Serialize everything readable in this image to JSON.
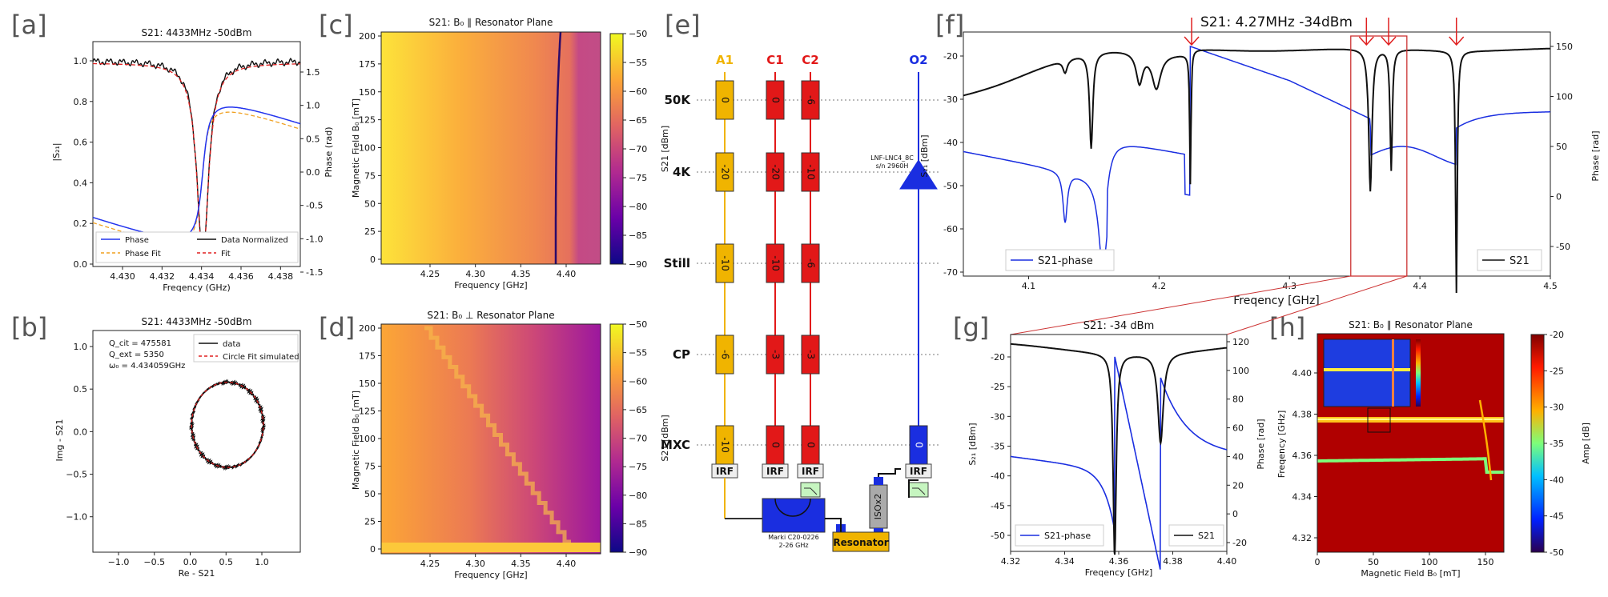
{
  "panel_labels": [
    "[a]",
    "[b]",
    "[c]",
    "[d]",
    "[e]",
    "[f]",
    "[g]",
    "[h]"
  ],
  "a": {
    "title": "S21: 4433MHz -50dBm",
    "xlabel": "Freqency (GHz)",
    "ylabel": "|S₂₁|",
    "y2label": "Phase (rad)",
    "xticks": [
      "4.430",
      "4.432",
      "4.434",
      "4.436",
      "4.438"
    ],
    "yticks": [
      "0.0",
      "0.2",
      "0.4",
      "0.6",
      "0.8",
      "1.0"
    ],
    "y2ticks": [
      "1.5",
      "1.0",
      "0.5",
      "0.0",
      "-0.5",
      "-1.0",
      "-1.5"
    ],
    "legend": [
      "Phase",
      "Data Normalized",
      "Phase Fit",
      "Fit"
    ]
  },
  "b": {
    "title": "S21: 4433MHz -50dBm",
    "xlabel": "Re - S21",
    "ylabel": "Img - S21",
    "xticks": [
      "−1.0",
      "−0.5",
      "0.0",
      "0.5",
      "1.0"
    ],
    "yticks": [
      "1.0",
      "0.5",
      "0.0",
      "−0.5",
      "−1.0"
    ],
    "params": [
      "Q_cit = 475581",
      "Q_ext = 5350",
      "ω₀ = 4.434059GHz"
    ],
    "legend": [
      "data",
      "Circle Fit simulated"
    ]
  },
  "c": {
    "title": "S21: B₀ ∥ Resonator Plane",
    "xlabel": "Frequency [GHz]",
    "ylabel": "Magnetic Field B₀ [mT]",
    "xticks": [
      "4.25",
      "4.30",
      "4.35",
      "4.40"
    ],
    "yticks": [
      "200",
      "175",
      "150",
      "125",
      "100",
      "75",
      "50",
      "25",
      "0"
    ],
    "cbar_label": "S21 [dBm]",
    "cbar_ticks": [
      "−50",
      "−55",
      "−60",
      "−65",
      "−70",
      "−75",
      "−80",
      "−85",
      "−90"
    ]
  },
  "d": {
    "title": "S21: B₀ ⊥ Resonator Plane",
    "xlabel": "Frequency [GHz]",
    "ylabel": "Magnetic Field B₀ [mT]",
    "xticks": [
      "4.25",
      "4.30",
      "4.35",
      "4.40"
    ],
    "yticks": [
      "200",
      "175",
      "150",
      "125",
      "100",
      "75",
      "50",
      "25",
      "0"
    ],
    "cbar_label": "S21 [dBm]",
    "cbar_ticks": [
      "−50",
      "−55",
      "−60",
      "−65",
      "−70",
      "−75",
      "−80",
      "−85",
      "−90"
    ]
  },
  "e": {
    "columns": [
      "A1",
      "C1",
      "C2",
      "O2"
    ],
    "column_colors": [
      "#f0b400",
      "#e21818",
      "#e21818",
      "#1a2ee0"
    ],
    "stages": [
      "50K",
      "4K",
      "Still",
      "CP",
      "MXC"
    ],
    "attenuators": {
      "A1": [
        "0",
        "-20",
        "-10",
        "-6",
        "-10"
      ],
      "C1": [
        "0",
        "-20",
        "-10",
        "-3",
        "0"
      ],
      "C2": [
        "-6",
        "-10",
        "-6",
        "-3",
        "0"
      ]
    },
    "o2_mxc": "0",
    "irf": "IRF",
    "lpf": "LPF",
    "amp_label": "LNF-LNC4_8C",
    "amp_sn": "s/n 2960H",
    "hybrid_label": "Marki C20-0226",
    "hybrid_range": "2-26 GHz",
    "isolator": "ISOx2",
    "resonator": "Resonator"
  },
  "f": {
    "title": "S21: 4.27MHz -34dBm",
    "xlabel": "Freqency [GHz]",
    "ylabel": "S₂₁ [dBm]",
    "y2label": "Phase [rad]",
    "xticks": [
      "4.1",
      "4.2",
      "4.3",
      "4.4",
      "4.5"
    ],
    "yticks": [
      "-20",
      "-30",
      "-40",
      "-50",
      "-60",
      "-70"
    ],
    "y2ticks": [
      "150",
      "100",
      "50",
      "0",
      "-50"
    ],
    "legend": [
      "S21-phase",
      "S21"
    ]
  },
  "g": {
    "title": "S21: -34 dBm",
    "xlabel": "Freqency [GHz]",
    "ylabel": "S₂₁ [dBm]",
    "y2label": "Phase [rad]",
    "xticks": [
      "4.32",
      "4.34",
      "4.36",
      "4.38",
      "4.40"
    ],
    "yticks": [
      "-20",
      "-25",
      "-30",
      "-35",
      "-40",
      "-45",
      "-50"
    ],
    "y2ticks": [
      "120",
      "100",
      "80",
      "60",
      "40",
      "20",
      "0",
      "-20"
    ],
    "legend": [
      "S21-phase",
      "S21"
    ]
  },
  "h": {
    "title": "S21: B₀ ∥ Resonator Plane",
    "xlabel": "Magnetic Field B₀ [mT]",
    "ylabel": "Freqency [GHz]",
    "xticks": [
      "0",
      "50",
      "100",
      "150"
    ],
    "yticks": [
      "4.40",
      "4.38",
      "4.36",
      "4.34",
      "4.32"
    ],
    "cbar_label": "Amp [dB]",
    "cbar_ticks": [
      "-20",
      "-25",
      "-30",
      "-35",
      "-40",
      "-45",
      "-50"
    ]
  }
}
